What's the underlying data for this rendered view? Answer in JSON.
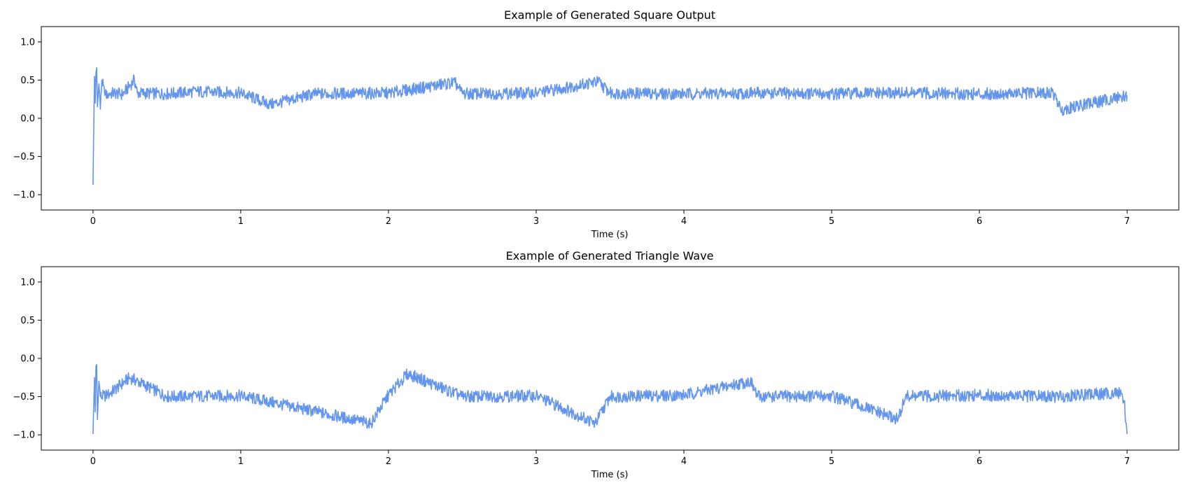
{
  "chart_data": [
    {
      "type": "line",
      "title": "Example of Generated Square Output",
      "xlabel": "Time (s)",
      "ylabel": "",
      "xlim": [
        -0.35,
        7.35
      ],
      "ylim": [
        -1.2,
        1.2
      ],
      "xticks": [
        0,
        1,
        2,
        3,
        4,
        5,
        6,
        7
      ],
      "xtick_labels": [
        "0",
        "1",
        "2",
        "3",
        "4",
        "5",
        "6",
        "7"
      ],
      "yticks": [
        -1.0,
        -0.5,
        0.0,
        0.5,
        1.0
      ],
      "ytick_labels": [
        "−1.0",
        "−0.5",
        "0.0",
        "0.5",
        "1.0"
      ],
      "grid": false,
      "series": [
        {
          "color": "#6495ED",
          "x": [
            0,
            0.01,
            0.015,
            0.02,
            0.025,
            0.03,
            0.04,
            0.05,
            0.06,
            0.08,
            0.1,
            0.15,
            0.2,
            0.28,
            0.3,
            0.5,
            0.7,
            1.0,
            1.2,
            1.5,
            2.0,
            2.45,
            2.5,
            3.0,
            3.42,
            3.5,
            4.0,
            4.5,
            5.0,
            5.5,
            6.0,
            6.5,
            6.55,
            7.0
          ],
          "y": [
            -0.87,
            0.55,
            0.2,
            0.6,
            0.66,
            0.15,
            0.45,
            0.12,
            0.5,
            0.3,
            0.32,
            0.33,
            0.31,
            0.5,
            0.33,
            0.32,
            0.35,
            0.33,
            0.18,
            0.32,
            0.33,
            0.47,
            0.32,
            0.33,
            0.48,
            0.33,
            0.32,
            0.33,
            0.32,
            0.33,
            0.32,
            0.33,
            0.11,
            0.3
          ]
        }
      ]
    },
    {
      "type": "line",
      "title": "Example of Generated Triangle Wave",
      "xlabel": "Time (s)",
      "ylabel": "",
      "xlim": [
        -0.35,
        7.35
      ],
      "ylim": [
        -1.2,
        1.2
      ],
      "xticks": [
        0,
        1,
        2,
        3,
        4,
        5,
        6,
        7
      ],
      "xtick_labels": [
        "0",
        "1",
        "2",
        "3",
        "4",
        "5",
        "6",
        "7"
      ],
      "yticks": [
        -1.0,
        -0.5,
        0.0,
        0.5,
        1.0
      ],
      "ytick_labels": [
        "−1.0",
        "−0.5",
        "0.0",
        "0.5",
        "1.0"
      ],
      "grid": false,
      "series": [
        {
          "color": "#6495ED",
          "x": [
            0,
            0.01,
            0.015,
            0.02,
            0.025,
            0.03,
            0.04,
            0.05,
            0.1,
            0.25,
            0.5,
            1.0,
            1.88,
            2.0,
            2.13,
            2.5,
            3.0,
            3.4,
            3.5,
            4.0,
            4.45,
            4.5,
            5.0,
            5.45,
            5.5,
            6.0,
            6.5,
            6.96,
            6.98,
            7.0
          ],
          "y": [
            -0.99,
            -0.25,
            -0.7,
            -0.1,
            -0.08,
            -0.8,
            -0.3,
            -0.5,
            -0.48,
            -0.25,
            -0.5,
            -0.49,
            -0.85,
            -0.48,
            -0.2,
            -0.5,
            -0.49,
            -0.85,
            -0.5,
            -0.48,
            -0.3,
            -0.5,
            -0.49,
            -0.8,
            -0.5,
            -0.48,
            -0.5,
            -0.45,
            -0.55,
            -0.99
          ]
        }
      ]
    }
  ]
}
